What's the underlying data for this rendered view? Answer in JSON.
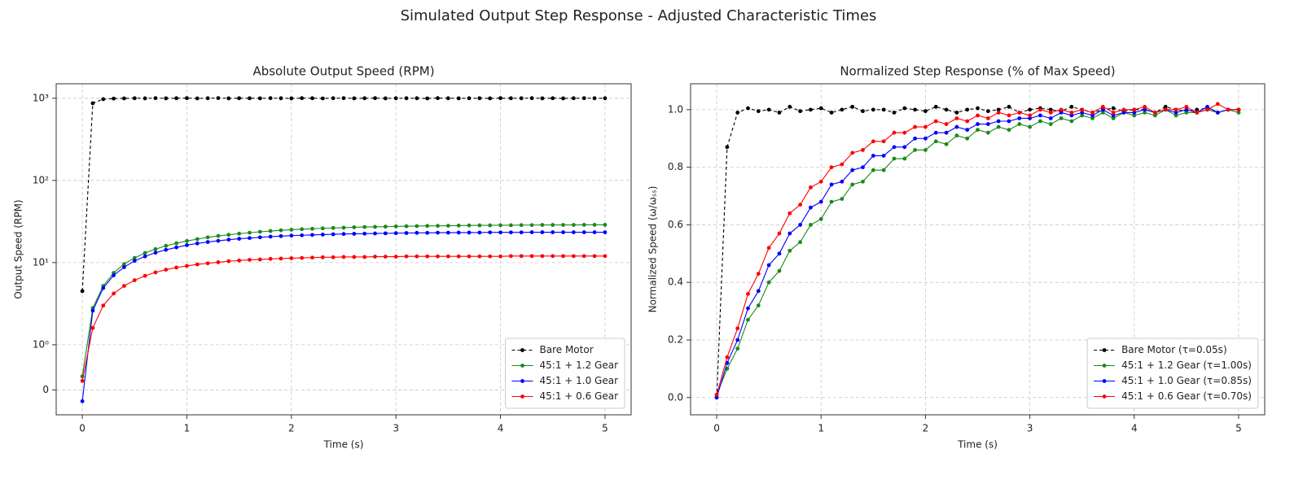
{
  "title": "Simulated Output Step Response - Adjusted Characteristic Times",
  "chart_data": [
    {
      "type": "line",
      "title": "Absolute Output Speed (RPM)",
      "x_label": "Time (s)",
      "y_label": "Output Speed (RPM)",
      "x": [
        0,
        0.1,
        0.2,
        0.3,
        0.4,
        0.5,
        0.6,
        0.7,
        0.8,
        0.9,
        1,
        1.1,
        1.2,
        1.3,
        1.4,
        1.5,
        1.6,
        1.7,
        1.8,
        1.9,
        2,
        2.1,
        2.2,
        2.3,
        2.4,
        2.5,
        2.6,
        2.7,
        2.8,
        2.9,
        3,
        3.1,
        3.2,
        3.3,
        3.4,
        3.5,
        3.6,
        3.7,
        3.8,
        3.9,
        4,
        4.1,
        4.2,
        4.3,
        4.4,
        4.5,
        4.6,
        4.7,
        4.8,
        4.9,
        5
      ],
      "series": [
        {
          "name": "Bare Motor",
          "color": "#000000",
          "linestyle": "dashed",
          "values": [
            4.5,
            870,
            975,
            990,
            996,
            1001,
            997,
            1003,
            998,
            1000,
            1002,
            996,
            1000,
            1004,
            997,
            1001,
            999,
            998,
            1003,
            1000,
            997,
            1002,
            1000,
            996,
            1001,
            1003,
            998,
            1000,
            1002,
            997,
            1000,
            1001,
            999,
            996,
            1003,
            1000,
            998,
            1001,
            1000,
            997,
            1002,
            999,
            1000,
            1003,
            998,
            1001,
            997,
            1000,
            1002,
            999,
            1000
          ]
        },
        {
          "name": "45:1 + 1.2 Gear",
          "color": "#1a8a1a",
          "linestyle": "solid",
          "values": [
            0.3,
            2.8,
            5.2,
            7.5,
            9.6,
            11.4,
            13.1,
            14.6,
            16.0,
            17.2,
            18.3,
            19.3,
            20.3,
            21.1,
            21.8,
            22.5,
            23.1,
            23.7,
            24.2,
            24.7,
            25.1,
            25.5,
            25.8,
            26.1,
            26.4,
            26.6,
            26.9,
            27.1,
            27.2,
            27.4,
            27.6,
            27.7,
            27.8,
            27.9,
            28.0,
            28.1,
            28.2,
            28.3,
            28.4,
            28.4,
            28.5,
            28.5,
            28.6,
            28.6,
            28.7,
            28.7,
            28.7,
            28.7,
            28.8,
            28.8,
            28.8
          ]
        },
        {
          "name": "45:1 + 1.0 Gear",
          "color": "#0000ff",
          "linestyle": "solid",
          "values": [
            -0.25,
            2.6,
            4.9,
            7.0,
            8.8,
            10.5,
            11.9,
            13.2,
            14.3,
            15.3,
            16.3,
            17.1,
            17.8,
            18.4,
            19.0,
            19.5,
            19.9,
            20.3,
            20.7,
            21.0,
            21.3,
            21.5,
            21.7,
            21.9,
            22.1,
            22.3,
            22.4,
            22.5,
            22.6,
            22.7,
            22.8,
            22.9,
            23.0,
            23.0,
            23.1,
            23.1,
            23.2,
            23.2,
            23.2,
            23.3,
            23.3,
            23.3,
            23.3,
            23.4,
            23.4,
            23.4,
            23.4,
            23.4,
            23.4,
            23.4,
            23.4
          ]
        },
        {
          "name": "45:1 + 0.6 Gear",
          "color": "#ff0000",
          "linestyle": "solid",
          "values": [
            0.2,
            1.6,
            3.0,
            4.2,
            5.2,
            6.1,
            6.9,
            7.6,
            8.2,
            8.7,
            9.1,
            9.5,
            9.8,
            10.1,
            10.4,
            10.6,
            10.8,
            10.9,
            11.1,
            11.2,
            11.3,
            11.4,
            11.5,
            11.6,
            11.6,
            11.7,
            11.7,
            11.7,
            11.8,
            11.8,
            11.8,
            11.9,
            11.9,
            11.9,
            11.9,
            11.9,
            11.9,
            11.9,
            11.9,
            11.9,
            11.9,
            12.0,
            12.0,
            12.0,
            12.0,
            12.0,
            12.0,
            12.0,
            12.0,
            12.0,
            12.0
          ]
        }
      ],
      "yscale": "symlog",
      "linthresh": 1,
      "linscale": 0.55,
      "xlim": [
        -0.25,
        5.25
      ],
      "ylim": [
        -0.55,
        1500
      ],
      "xticks": [
        0,
        1,
        2,
        3,
        4,
        5
      ],
      "yticks": [
        0,
        {
          "value": 1,
          "label": "10⁰"
        },
        {
          "value": 10,
          "label": "10¹"
        },
        {
          "value": 100,
          "label": "10²"
        },
        {
          "value": 1000,
          "label": "10³"
        }
      ],
      "grid": true,
      "legend": "lower right"
    },
    {
      "type": "line",
      "title": "Normalized Step Response (% of Max Speed)",
      "x_label": "Time (s)",
      "y_label": "Normalized Speed (ω/ωₛₛ)",
      "x": [
        0,
        0.1,
        0.2,
        0.3,
        0.4,
        0.5,
        0.6,
        0.7,
        0.8,
        0.9,
        1,
        1.1,
        1.2,
        1.3,
        1.4,
        1.5,
        1.6,
        1.7,
        1.8,
        1.9,
        2,
        2.1,
        2.2,
        2.3,
        2.4,
        2.5,
        2.6,
        2.7,
        2.8,
        2.9,
        3,
        3.1,
        3.2,
        3.3,
        3.4,
        3.5,
        3.6,
        3.7,
        3.8,
        3.9,
        4,
        4.1,
        4.2,
        4.3,
        4.4,
        4.5,
        4.6,
        4.7,
        4.8,
        4.9,
        5
      ],
      "series": [
        {
          "name": "Bare Motor (τ=0.05s)",
          "color": "#000000",
          "linestyle": "dashed",
          "values": [
            0.0,
            0.87,
            0.99,
            1.005,
            0.995,
            1.0,
            0.99,
            1.01,
            0.995,
            1.0,
            1.005,
            0.99,
            1.0,
            1.01,
            0.995,
            1.0,
            1.0,
            0.99,
            1.005,
            1.0,
            0.995,
            1.01,
            1.0,
            0.99,
            1.0,
            1.005,
            0.995,
            1.0,
            1.01,
            0.99,
            1.0,
            1.005,
            1.0,
            0.995,
            1.01,
            1.0,
            0.99,
            1.0,
            1.005,
            0.995,
            1.0,
            1.0,
            0.99,
            1.01,
            1.0,
            0.995,
            1.0,
            1.005,
            0.99,
            1.0,
            1.0
          ]
        },
        {
          "name": "45:1 + 1.2 Gear (τ=1.00s)",
          "color": "#1a8a1a",
          "linestyle": "solid",
          "values": [
            0.01,
            0.1,
            0.17,
            0.27,
            0.32,
            0.4,
            0.44,
            0.51,
            0.54,
            0.6,
            0.62,
            0.68,
            0.69,
            0.74,
            0.75,
            0.79,
            0.79,
            0.83,
            0.83,
            0.86,
            0.86,
            0.89,
            0.88,
            0.91,
            0.9,
            0.93,
            0.92,
            0.94,
            0.93,
            0.95,
            0.94,
            0.96,
            0.95,
            0.97,
            0.96,
            0.98,
            0.97,
            0.99,
            0.97,
            0.99,
            0.98,
            0.99,
            0.98,
            1.0,
            0.98,
            0.99,
            0.99,
            1.0,
            0.99,
            1.0,
            0.99
          ]
        },
        {
          "name": "45:1 + 1.0 Gear (τ=0.85s)",
          "color": "#0000ff",
          "linestyle": "solid",
          "values": [
            0.0,
            0.12,
            0.2,
            0.31,
            0.37,
            0.46,
            0.5,
            0.57,
            0.6,
            0.66,
            0.68,
            0.74,
            0.75,
            0.79,
            0.8,
            0.84,
            0.84,
            0.87,
            0.87,
            0.9,
            0.9,
            0.92,
            0.92,
            0.94,
            0.93,
            0.95,
            0.95,
            0.96,
            0.96,
            0.97,
            0.97,
            0.98,
            0.97,
            0.99,
            0.98,
            0.99,
            0.98,
            1.0,
            0.98,
            0.99,
            0.99,
            1.0,
            0.99,
            1.0,
            0.99,
            1.0,
            0.99,
            1.01,
            0.99,
            1.0,
            1.0
          ]
        },
        {
          "name": "45:1 + 0.6 Gear (τ=0.70s)",
          "color": "#ff0000",
          "linestyle": "solid",
          "values": [
            0.01,
            0.14,
            0.24,
            0.36,
            0.43,
            0.52,
            0.57,
            0.64,
            0.67,
            0.73,
            0.75,
            0.8,
            0.81,
            0.85,
            0.86,
            0.89,
            0.89,
            0.92,
            0.92,
            0.94,
            0.94,
            0.96,
            0.95,
            0.97,
            0.96,
            0.98,
            0.97,
            0.99,
            0.98,
            0.99,
            0.98,
            1.0,
            0.99,
            1.0,
            0.99,
            1.0,
            0.99,
            1.01,
            0.99,
            1.0,
            1.0,
            1.01,
            0.99,
            1.0,
            1.0,
            1.01,
            0.99,
            1.0,
            1.02,
            1.0,
            1.0
          ]
        }
      ],
      "yscale": "linear",
      "xlim": [
        -0.25,
        5.25
      ],
      "ylim": [
        -0.06,
        1.09
      ],
      "xticks": [
        0,
        1,
        2,
        3,
        4,
        5
      ],
      "yticks": [
        {
          "value": 0,
          "label": "0.0"
        },
        0.2,
        0.4,
        0.6,
        0.8,
        {
          "value": 1,
          "label": "1.0"
        }
      ],
      "grid": true,
      "legend": "lower right"
    }
  ]
}
